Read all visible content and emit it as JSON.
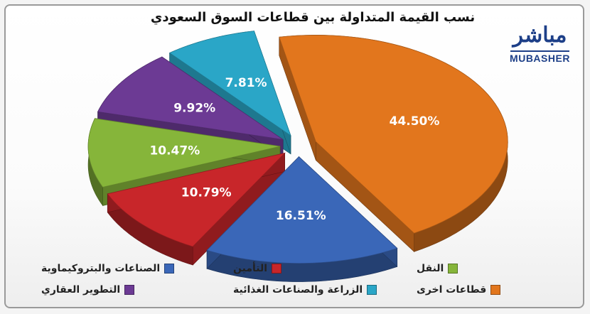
{
  "title": "نسب القيمة المتداولة بين قطاعات السوق السعودي",
  "logo": {
    "arabic": "مباشر",
    "english": "MUBASHER"
  },
  "chart_data": {
    "type": "pie",
    "title": "نسب القيمة المتداولة بين قطاعات السوق السعودي",
    "series": [
      {
        "name": "قطاعات اخرى",
        "value": 44.5,
        "label": "44.50%",
        "color": "#e2761d"
      },
      {
        "name": "الصناعات والبتروكيماوية",
        "value": 16.51,
        "label": "16.51%",
        "color": "#3a67b8"
      },
      {
        "name": "التأمين",
        "value": 10.79,
        "label": "10.79%",
        "color": "#c8262a"
      },
      {
        "name": "النقل",
        "value": 10.47,
        "label": "10.47%",
        "color": "#86b53a"
      },
      {
        "name": "التطوير العقاري",
        "value": 9.92,
        "label": "9.92%",
        "color": "#6c3a94"
      },
      {
        "name": "الزراعة والصناعات الغذائية",
        "value": 7.81,
        "label": "7.81%",
        "color": "#2aa6c7"
      }
    ],
    "legend": [
      {
        "name": "الصناعات والبتروكيماوية",
        "color": "#3a67b8"
      },
      {
        "name": "التأمين",
        "color": "#c8262a"
      },
      {
        "name": "النقل",
        "color": "#86b53a"
      },
      {
        "name": "التطوير العقاري",
        "color": "#6c3a94"
      },
      {
        "name": "الزراعة والصناعات الغذائية",
        "color": "#2aa6c7"
      },
      {
        "name": "قطاعات اخرى",
        "color": "#e2761d"
      }
    ],
    "legend_position": "bottom",
    "style": "3d-exploded"
  }
}
